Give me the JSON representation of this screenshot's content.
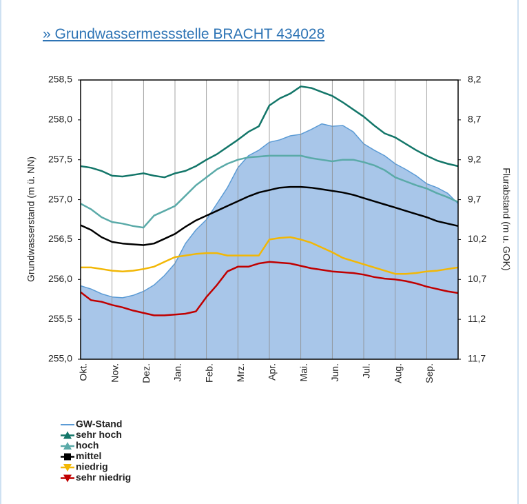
{
  "chart_data": {
    "type": "line",
    "title": "» Grundwassermessstelle BRACHT 434028",
    "y_label": "Grundwasserstand (m ü. NN)",
    "y2_label": "Flurabstand (m u. GOK)",
    "categories": [
      "Okt.",
      null,
      null,
      "Nov.",
      null,
      null,
      "Dez.",
      null,
      null,
      "Jan.",
      null,
      null,
      "Feb.",
      null,
      null,
      "Mrz.",
      null,
      null,
      "Apr.",
      null,
      null,
      "Mai.",
      null,
      null,
      "Jun.",
      null,
      null,
      "Jul.",
      null,
      null,
      "Aug.",
      null,
      null,
      "Sep.",
      null,
      null,
      null
    ],
    "ylim": [
      255.0,
      258.5
    ],
    "yticks": [
      {
        "value": 255.0,
        "label": "255,0"
      },
      {
        "value": 255.5,
        "label": "255,5"
      },
      {
        "value": 256.0,
        "label": "256,0"
      },
      {
        "value": 256.5,
        "label": "256,5"
      },
      {
        "value": 257.0,
        "label": "257,0"
      },
      {
        "value": 257.5,
        "label": "257,5"
      },
      {
        "value": 258.0,
        "label": "258,0"
      },
      {
        "value": 258.5,
        "label": "258,5"
      }
    ],
    "y2lim": [
      11.7,
      8.2
    ],
    "y2ticks": [
      {
        "value": 11.7,
        "label": "11,7"
      },
      {
        "value": 11.2,
        "label": "11,2"
      },
      {
        "value": 10.7,
        "label": "10,7"
      },
      {
        "value": 10.2,
        "label": "10,2"
      },
      {
        "value": 9.7,
        "label": "9,7"
      },
      {
        "value": 9.2,
        "label": "9,2"
      },
      {
        "value": 8.7,
        "label": "8,7"
      },
      {
        "value": 8.2,
        "label": "8,2"
      }
    ],
    "grid": "x",
    "legend": "bottom-left",
    "series": [
      {
        "name": "GW-Stand",
        "color": "#5b9bd5",
        "fill": "#a8c6e9",
        "marker": "line",
        "area": true,
        "values": [
          255.92,
          255.88,
          255.82,
          255.78,
          255.77,
          255.8,
          255.85,
          255.93,
          256.05,
          256.2,
          256.45,
          256.62,
          256.75,
          256.95,
          257.15,
          257.4,
          257.55,
          257.62,
          257.72,
          257.75,
          257.8,
          257.82,
          257.88,
          257.95,
          257.92,
          257.93,
          257.85,
          257.7,
          257.62,
          257.55,
          257.45,
          257.38,
          257.3,
          257.2,
          257.15,
          257.08,
          256.95
        ]
      },
      {
        "name": "sehr hoch",
        "color": "#137669",
        "marker": "triangle-up",
        "values": [
          257.42,
          257.4,
          257.36,
          257.3,
          257.29,
          257.31,
          257.33,
          257.3,
          257.28,
          257.33,
          257.36,
          257.42,
          257.5,
          257.57,
          257.66,
          257.75,
          257.85,
          257.92,
          258.18,
          258.27,
          258.33,
          258.42,
          258.4,
          258.35,
          258.3,
          258.22,
          258.13,
          258.04,
          257.93,
          257.83,
          257.78,
          257.7,
          257.62,
          257.55,
          257.49,
          257.45,
          257.42
        ]
      },
      {
        "name": "hoch",
        "color": "#5aaaa8",
        "marker": "triangle-up",
        "values": [
          256.95,
          256.88,
          256.78,
          256.72,
          256.7,
          256.67,
          256.65,
          256.8,
          256.86,
          256.92,
          257.05,
          257.18,
          257.28,
          257.38,
          257.45,
          257.5,
          257.53,
          257.54,
          257.55,
          257.55,
          257.55,
          257.55,
          257.52,
          257.5,
          257.48,
          257.5,
          257.5,
          257.47,
          257.43,
          257.37,
          257.28,
          257.23,
          257.18,
          257.14,
          257.08,
          257.03,
          256.97
        ]
      },
      {
        "name": "mittel",
        "color": "#000000",
        "marker": "square",
        "values": [
          256.68,
          256.62,
          256.53,
          256.47,
          256.45,
          256.44,
          256.43,
          256.45,
          256.51,
          256.57,
          256.66,
          256.74,
          256.8,
          256.86,
          256.92,
          256.98,
          257.04,
          257.09,
          257.12,
          257.15,
          257.16,
          257.16,
          257.15,
          257.13,
          257.11,
          257.09,
          257.06,
          257.02,
          256.98,
          256.94,
          256.9,
          256.86,
          256.82,
          256.78,
          256.73,
          256.7,
          256.67
        ]
      },
      {
        "name": "niedrig",
        "color": "#f2b705",
        "marker": "triangle-down",
        "values": [
          256.15,
          256.15,
          256.13,
          256.11,
          256.1,
          256.11,
          256.13,
          256.16,
          256.22,
          256.28,
          256.3,
          256.32,
          256.33,
          256.33,
          256.3,
          256.3,
          256.3,
          256.3,
          256.5,
          256.52,
          256.53,
          256.5,
          256.46,
          256.4,
          256.34,
          256.27,
          256.23,
          256.19,
          256.15,
          256.11,
          256.07,
          256.07,
          256.08,
          256.1,
          256.11,
          256.13,
          256.15
        ]
      },
      {
        "name": "sehr niedrig",
        "color": "#c00000",
        "marker": "triangle-down",
        "values": [
          255.84,
          255.74,
          255.72,
          255.68,
          255.65,
          255.61,
          255.58,
          255.55,
          255.55,
          255.56,
          255.57,
          255.6,
          255.78,
          255.93,
          256.1,
          256.16,
          256.16,
          256.2,
          256.22,
          256.21,
          256.2,
          256.17,
          256.14,
          256.12,
          256.1,
          256.09,
          256.08,
          256.06,
          256.03,
          256.01,
          256.0,
          255.98,
          255.95,
          255.91,
          255.88,
          255.85,
          255.83
        ]
      }
    ]
  }
}
